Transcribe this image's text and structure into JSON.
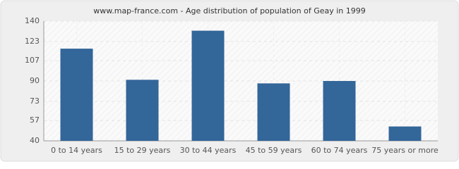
{
  "chart_data": {
    "type": "bar",
    "title": "www.map-france.com - Age distribution of population of Geay in 1999",
    "categories": [
      "0 to 14 years",
      "15 to 29 years",
      "30 to 44 years",
      "45 to 59 years",
      "60 to 74 years",
      "75 years or more"
    ],
    "values": [
      117,
      91,
      132,
      88,
      90,
      52
    ],
    "color": "#336699",
    "ylim": [
      40,
      140
    ],
    "yticks": [
      40,
      57,
      73,
      90,
      107,
      123,
      140
    ],
    "grid": true
  }
}
